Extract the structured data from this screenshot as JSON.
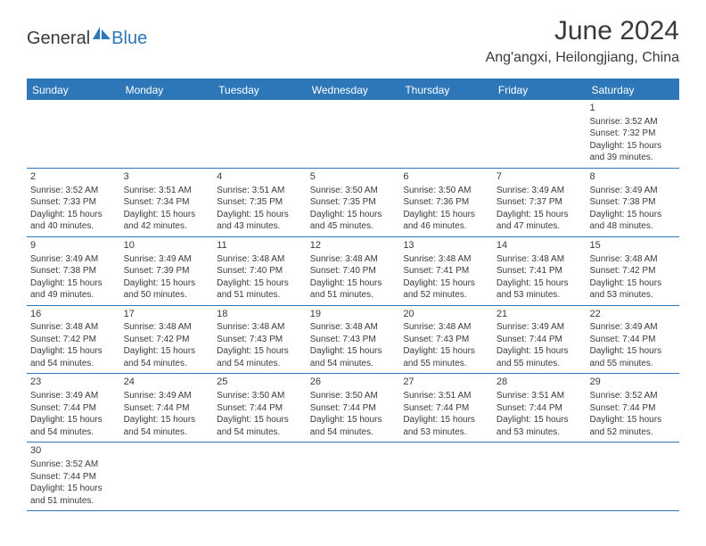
{
  "logo": {
    "part1": "General",
    "part2": "Blue"
  },
  "title": "June 2024",
  "location": "Ang'angxi, Heilongjiang, China",
  "colors": {
    "accent": "#2d77b8",
    "text": "#3a3a3a",
    "bg": "#ffffff"
  },
  "weekdays": [
    "Sunday",
    "Monday",
    "Tuesday",
    "Wednesday",
    "Thursday",
    "Friday",
    "Saturday"
  ],
  "weeks": [
    [
      null,
      null,
      null,
      null,
      null,
      null,
      {
        "n": "1",
        "sr": "Sunrise: 3:52 AM",
        "ss": "Sunset: 7:32 PM",
        "d1": "Daylight: 15 hours",
        "d2": "and 39 minutes."
      }
    ],
    [
      {
        "n": "2",
        "sr": "Sunrise: 3:52 AM",
        "ss": "Sunset: 7:33 PM",
        "d1": "Daylight: 15 hours",
        "d2": "and 40 minutes."
      },
      {
        "n": "3",
        "sr": "Sunrise: 3:51 AM",
        "ss": "Sunset: 7:34 PM",
        "d1": "Daylight: 15 hours",
        "d2": "and 42 minutes."
      },
      {
        "n": "4",
        "sr": "Sunrise: 3:51 AM",
        "ss": "Sunset: 7:35 PM",
        "d1": "Daylight: 15 hours",
        "d2": "and 43 minutes."
      },
      {
        "n": "5",
        "sr": "Sunrise: 3:50 AM",
        "ss": "Sunset: 7:35 PM",
        "d1": "Daylight: 15 hours",
        "d2": "and 45 minutes."
      },
      {
        "n": "6",
        "sr": "Sunrise: 3:50 AM",
        "ss": "Sunset: 7:36 PM",
        "d1": "Daylight: 15 hours",
        "d2": "and 46 minutes."
      },
      {
        "n": "7",
        "sr": "Sunrise: 3:49 AM",
        "ss": "Sunset: 7:37 PM",
        "d1": "Daylight: 15 hours",
        "d2": "and 47 minutes."
      },
      {
        "n": "8",
        "sr": "Sunrise: 3:49 AM",
        "ss": "Sunset: 7:38 PM",
        "d1": "Daylight: 15 hours",
        "d2": "and 48 minutes."
      }
    ],
    [
      {
        "n": "9",
        "sr": "Sunrise: 3:49 AM",
        "ss": "Sunset: 7:38 PM",
        "d1": "Daylight: 15 hours",
        "d2": "and 49 minutes."
      },
      {
        "n": "10",
        "sr": "Sunrise: 3:49 AM",
        "ss": "Sunset: 7:39 PM",
        "d1": "Daylight: 15 hours",
        "d2": "and 50 minutes."
      },
      {
        "n": "11",
        "sr": "Sunrise: 3:48 AM",
        "ss": "Sunset: 7:40 PM",
        "d1": "Daylight: 15 hours",
        "d2": "and 51 minutes."
      },
      {
        "n": "12",
        "sr": "Sunrise: 3:48 AM",
        "ss": "Sunset: 7:40 PM",
        "d1": "Daylight: 15 hours",
        "d2": "and 51 minutes."
      },
      {
        "n": "13",
        "sr": "Sunrise: 3:48 AM",
        "ss": "Sunset: 7:41 PM",
        "d1": "Daylight: 15 hours",
        "d2": "and 52 minutes."
      },
      {
        "n": "14",
        "sr": "Sunrise: 3:48 AM",
        "ss": "Sunset: 7:41 PM",
        "d1": "Daylight: 15 hours",
        "d2": "and 53 minutes."
      },
      {
        "n": "15",
        "sr": "Sunrise: 3:48 AM",
        "ss": "Sunset: 7:42 PM",
        "d1": "Daylight: 15 hours",
        "d2": "and 53 minutes."
      }
    ],
    [
      {
        "n": "16",
        "sr": "Sunrise: 3:48 AM",
        "ss": "Sunset: 7:42 PM",
        "d1": "Daylight: 15 hours",
        "d2": "and 54 minutes."
      },
      {
        "n": "17",
        "sr": "Sunrise: 3:48 AM",
        "ss": "Sunset: 7:42 PM",
        "d1": "Daylight: 15 hours",
        "d2": "and 54 minutes."
      },
      {
        "n": "18",
        "sr": "Sunrise: 3:48 AM",
        "ss": "Sunset: 7:43 PM",
        "d1": "Daylight: 15 hours",
        "d2": "and 54 minutes."
      },
      {
        "n": "19",
        "sr": "Sunrise: 3:48 AM",
        "ss": "Sunset: 7:43 PM",
        "d1": "Daylight: 15 hours",
        "d2": "and 54 minutes."
      },
      {
        "n": "20",
        "sr": "Sunrise: 3:48 AM",
        "ss": "Sunset: 7:43 PM",
        "d1": "Daylight: 15 hours",
        "d2": "and 55 minutes."
      },
      {
        "n": "21",
        "sr": "Sunrise: 3:49 AM",
        "ss": "Sunset: 7:44 PM",
        "d1": "Daylight: 15 hours",
        "d2": "and 55 minutes."
      },
      {
        "n": "22",
        "sr": "Sunrise: 3:49 AM",
        "ss": "Sunset: 7:44 PM",
        "d1": "Daylight: 15 hours",
        "d2": "and 55 minutes."
      }
    ],
    [
      {
        "n": "23",
        "sr": "Sunrise: 3:49 AM",
        "ss": "Sunset: 7:44 PM",
        "d1": "Daylight: 15 hours",
        "d2": "and 54 minutes."
      },
      {
        "n": "24",
        "sr": "Sunrise: 3:49 AM",
        "ss": "Sunset: 7:44 PM",
        "d1": "Daylight: 15 hours",
        "d2": "and 54 minutes."
      },
      {
        "n": "25",
        "sr": "Sunrise: 3:50 AM",
        "ss": "Sunset: 7:44 PM",
        "d1": "Daylight: 15 hours",
        "d2": "and 54 minutes."
      },
      {
        "n": "26",
        "sr": "Sunrise: 3:50 AM",
        "ss": "Sunset: 7:44 PM",
        "d1": "Daylight: 15 hours",
        "d2": "and 54 minutes."
      },
      {
        "n": "27",
        "sr": "Sunrise: 3:51 AM",
        "ss": "Sunset: 7:44 PM",
        "d1": "Daylight: 15 hours",
        "d2": "and 53 minutes."
      },
      {
        "n": "28",
        "sr": "Sunrise: 3:51 AM",
        "ss": "Sunset: 7:44 PM",
        "d1": "Daylight: 15 hours",
        "d2": "and 53 minutes."
      },
      {
        "n": "29",
        "sr": "Sunrise: 3:52 AM",
        "ss": "Sunset: 7:44 PM",
        "d1": "Daylight: 15 hours",
        "d2": "and 52 minutes."
      }
    ],
    [
      {
        "n": "30",
        "sr": "Sunrise: 3:52 AM",
        "ss": "Sunset: 7:44 PM",
        "d1": "Daylight: 15 hours",
        "d2": "and 51 minutes."
      },
      null,
      null,
      null,
      null,
      null,
      null
    ]
  ]
}
